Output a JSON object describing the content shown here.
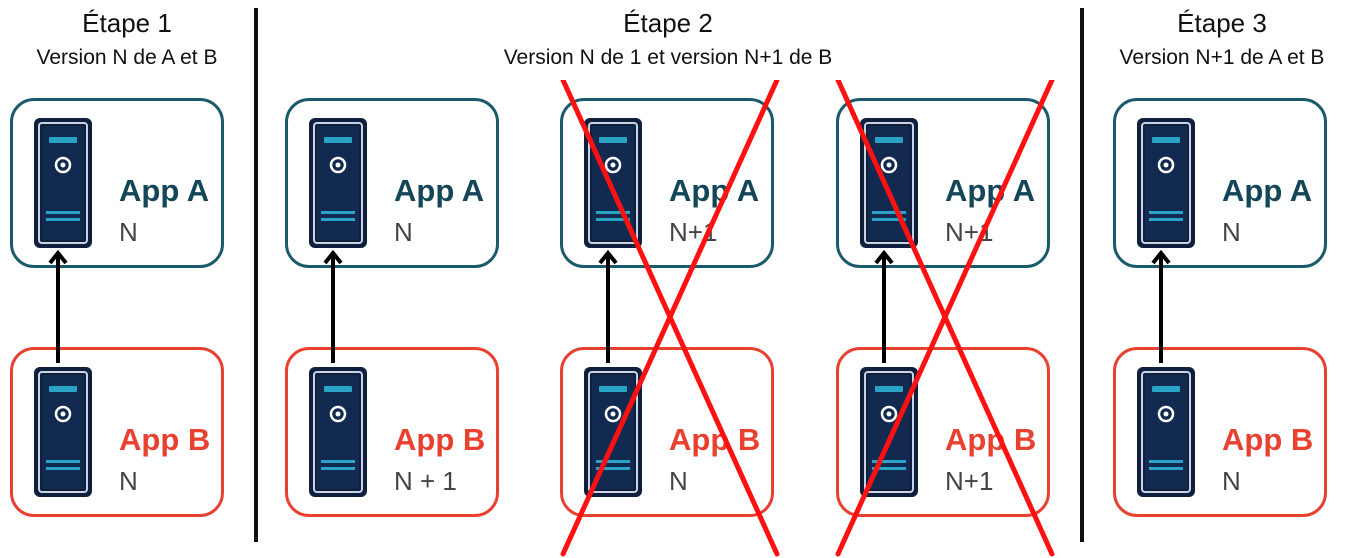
{
  "stages": [
    {
      "title": "Étape 1",
      "subtitle": "Version N de A et B"
    },
    {
      "title": "Étape 2",
      "subtitle": "Version N de 1 et version N+1 de B"
    },
    {
      "title": "Étape 3",
      "subtitle": "Version N+1 de A et B"
    }
  ],
  "columns": [
    {
      "a_name": "App A",
      "a_version": "N",
      "b_name": "App B",
      "b_version": "N"
    },
    {
      "a_name": "App A",
      "a_version": "N",
      "b_name": "App B",
      "b_version": "N + 1"
    },
    {
      "a_name": "App A",
      "a_version": "N+1",
      "b_name": "App B",
      "b_version": "N"
    },
    {
      "a_name": "App A",
      "a_version": "N+1",
      "b_name": "App B",
      "b_version": "N+1"
    },
    {
      "a_name": "App A",
      "a_version": "N",
      "b_name": "App B",
      "b_version": "N"
    }
  ],
  "crossed_out_columns": [
    3,
    4
  ],
  "icons": {
    "server": "server-tower-icon",
    "arrow": "up-arrow-icon",
    "cross": "red-cross-icon"
  },
  "colors": {
    "app_a_border": "#1b5a6b",
    "app_a_text": "#134657",
    "app_b": "#e8412f",
    "cross": "#ff1111",
    "server_body": "#0f1f3d",
    "server_accent": "#2ba3c6"
  }
}
